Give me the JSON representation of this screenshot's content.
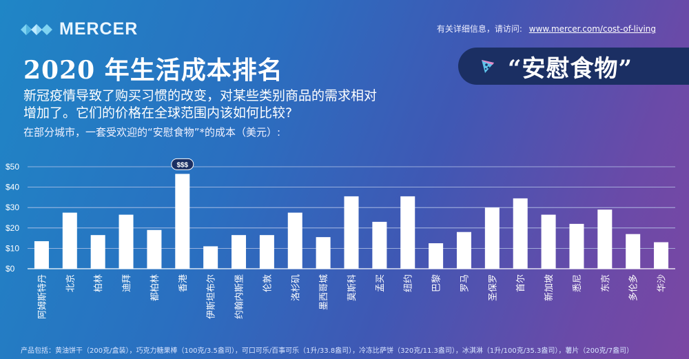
{
  "brand": {
    "name": "MERCER"
  },
  "more_info": {
    "label": "有关详细信息，请访问:",
    "url": "www.mercer.com/cost-of-living"
  },
  "header": {
    "title": "2020 年生活成本排名",
    "badge": "“安慰食物”",
    "badge_icon": "pizza-slice-icon"
  },
  "subtitle": "新冠疫情导致了购买习惯的改变，对某些类别商品的需求相对增加了。它们的价格在全球范围内该如何比较?",
  "caption": "在部分城市，一套受欢迎的“安慰食物”*的成本（美元）:",
  "footnote": "产品包括：黄油饼干（200克/盒装），巧克力糖果棒（100克/3.5盎司），可口可乐/百事可乐（1升/33.8盎司），冷冻比萨饼（320克/11.3盎司），冰淇淋（1升/100克/35.3盎司），薯片（200克/7盎司）",
  "colors": {
    "bar": "#ffffff",
    "grid": "#b9c7ea",
    "badge_bg": "#1b2f63"
  },
  "chart_data": {
    "type": "bar",
    "categories": [
      "阿姆斯特丹",
      "北京",
      "柏林",
      "迪拜",
      "都柏林",
      "香港",
      "伊斯坦布尔",
      "约翰内斯堡",
      "伦敦",
      "洛杉矶",
      "墨西哥城",
      "莫斯科",
      "孟买",
      "纽约",
      "巴黎",
      "罗马",
      "圣保罗",
      "首尔",
      "新加坡",
      "悉尼",
      "东京",
      "多伦多",
      "华沙"
    ],
    "values": [
      13.5,
      27.5,
      16.5,
      26.5,
      19,
      46.5,
      11,
      16.5,
      16.5,
      27.5,
      15.5,
      35.5,
      23,
      35.5,
      12.5,
      18,
      30,
      34.5,
      26.5,
      22,
      29,
      17,
      13
    ],
    "ylim": [
      0,
      50
    ],
    "yticks": [
      "$0",
      "$10",
      "$20",
      "$30",
      "$40",
      "$50"
    ],
    "grid": true,
    "highlight": {
      "category": "香港",
      "label": "$$$"
    }
  }
}
